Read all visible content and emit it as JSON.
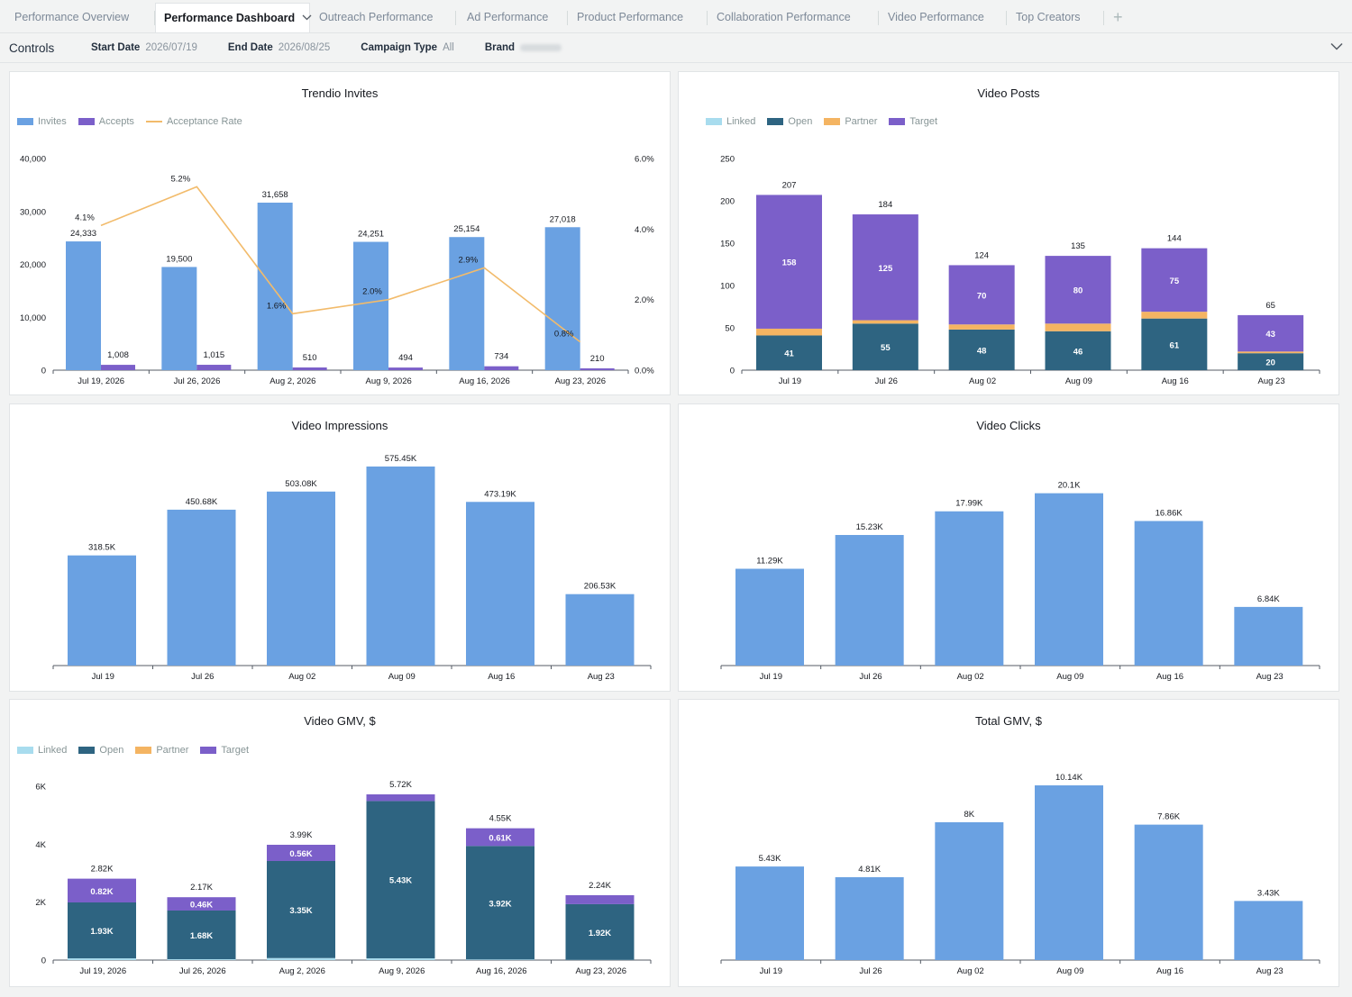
{
  "tabs": [
    {
      "label": "Performance Overview",
      "active": false
    },
    {
      "label": "Performance Dashboard",
      "active": true
    },
    {
      "label": "Outreach Performance",
      "active": false
    },
    {
      "label": "Ad Performance",
      "active": false
    },
    {
      "label": "Product Performance",
      "active": false
    },
    {
      "label": "Collaboration Performance",
      "active": false
    },
    {
      "label": "Video Performance",
      "active": false
    },
    {
      "label": "Top Creators",
      "active": false
    }
  ],
  "add_tab_label": "+",
  "controls": {
    "title": "Controls",
    "start_date_label": "Start Date",
    "start_date_value": "2026/07/19",
    "end_date_label": "End Date",
    "end_date_value": "2026/08/25",
    "campaign_type_label": "Campaign Type",
    "campaign_type_value": "All",
    "brand_label": "Brand"
  },
  "colors": {
    "invites": "#6aa1e2",
    "accepts": "#7b5fc9",
    "rate_line": "#f2bb6b",
    "linked": "#a8dcee",
    "open": "#2e6481",
    "partner": "#f4b462",
    "target": "#7b5fc9",
    "bar": "#6aa1e2"
  },
  "chart_data": [
    {
      "id": "trendio-invites",
      "type": "bar",
      "title": "Trendio Invites",
      "categories": [
        "Jul 19, 2026",
        "Jul 26, 2026",
        "Aug 2, 2026",
        "Aug 9, 2026",
        "Aug 16, 2026",
        "Aug 23, 2026"
      ],
      "series": [
        {
          "name": "Invites",
          "values": [
            24333,
            19500,
            31658,
            24251,
            25154,
            27018
          ],
          "labels": [
            "24,333",
            "19,500",
            "31,658",
            "24,251",
            "25,154",
            "27,018"
          ]
        },
        {
          "name": "Accepts",
          "values": [
            1008,
            1015,
            510,
            494,
            734,
            210
          ],
          "labels": [
            "1,008",
            "1,015",
            "510",
            "494",
            "734",
            "210"
          ]
        }
      ],
      "line_series": {
        "name": "Acceptance Rate",
        "values": [
          4.1,
          5.2,
          1.6,
          2.0,
          2.9,
          0.8
        ],
        "labels": [
          "4.1%",
          "5.2%",
          "1.6%",
          "2.0%",
          "2.9%",
          "0.8%"
        ]
      },
      "ylim": [
        0,
        40000
      ],
      "yticks": [
        "0",
        "10,000",
        "20,000",
        "30,000",
        "40,000"
      ],
      "y2lim": [
        0,
        6
      ],
      "y2ticks": [
        "0.0%",
        "2.0%",
        "4.0%",
        "6.0%"
      ],
      "legend": "top-left"
    },
    {
      "id": "video-posts",
      "type": "bar",
      "stacked": true,
      "title": "Video Posts",
      "categories": [
        "Jul 19",
        "Jul 26",
        "Aug 02",
        "Aug 09",
        "Aug 16",
        "Aug 23"
      ],
      "series": [
        {
          "name": "Linked",
          "values": [
            0,
            0,
            0,
            0,
            0,
            0
          ],
          "labels": []
        },
        {
          "name": "Open",
          "values": [
            41,
            55,
            48,
            46,
            61,
            20
          ],
          "labels": [
            "41",
            "55",
            "48",
            "46",
            "61",
            "20"
          ]
        },
        {
          "name": "Partner",
          "values": [
            8,
            4,
            6,
            9,
            8,
            2
          ],
          "labels": []
        },
        {
          "name": "Target",
          "values": [
            158,
            125,
            70,
            80,
            75,
            43
          ],
          "labels": [
            "158",
            "125",
            "70",
            "80",
            "75",
            "43"
          ]
        }
      ],
      "totals": [
        "207",
        "184",
        "124",
        "135",
        "144",
        "65"
      ],
      "ylim": [
        0,
        250
      ],
      "yticks": [
        "0",
        "50",
        "100",
        "150",
        "200",
        "250"
      ],
      "legend": "top-left"
    },
    {
      "id": "video-impressions",
      "type": "bar",
      "title": "Video Impressions",
      "categories": [
        "Jul 19",
        "Jul 26",
        "Aug 02",
        "Aug 09",
        "Aug 16",
        "Aug 23"
      ],
      "values": [
        318500,
        450680,
        503080,
        575450,
        473190,
        206530
      ],
      "labels": [
        "318.5K",
        "450.68K",
        "503.08K",
        "575.45K",
        "473.19K",
        "206.53K"
      ],
      "ylim": [
        0,
        575450
      ]
    },
    {
      "id": "video-clicks",
      "type": "bar",
      "title": "Video Clicks",
      "categories": [
        "Jul 19",
        "Jul 26",
        "Aug 02",
        "Aug 09",
        "Aug 16",
        "Aug 23"
      ],
      "values": [
        11290,
        15230,
        17990,
        20100,
        16860,
        6840
      ],
      "labels": [
        "11.29K",
        "15.23K",
        "17.99K",
        "20.1K",
        "16.86K",
        "6.84K"
      ],
      "ylim": [
        0,
        25000
      ]
    },
    {
      "id": "video-gmv",
      "type": "bar",
      "stacked": true,
      "title": "Video GMV, $",
      "categories": [
        "Jul 19, 2026",
        "Jul 26, 2026",
        "Aug 2, 2026",
        "Aug 9, 2026",
        "Aug 16, 2026",
        "Aug 23, 2026"
      ],
      "series": [
        {
          "name": "Linked",
          "values": [
            60,
            30,
            70,
            60,
            20,
            10
          ],
          "labels": []
        },
        {
          "name": "Open",
          "values": [
            1930,
            1680,
            3350,
            5430,
            3920,
            1920
          ],
          "labels": [
            "1.93K",
            "1.68K",
            "3.35K",
            "5.43K",
            "3.92K",
            "1.92K"
          ]
        },
        {
          "name": "Partner",
          "values": [
            0,
            0,
            0,
            0,
            0,
            0
          ],
          "labels": []
        },
        {
          "name": "Target",
          "values": [
            820,
            460,
            560,
            230,
            610,
            310
          ],
          "labels": [
            "0.82K",
            "0.46K",
            "0.56K",
            "",
            "0.61K",
            ""
          ]
        }
      ],
      "totals": [
        "2.82K",
        "2.17K",
        "3.99K",
        "5.72K",
        "4.55K",
        "2.24K"
      ],
      "ylim": [
        0,
        6000
      ],
      "yticks": [
        "0",
        "2K",
        "4K",
        "6K"
      ],
      "legend": "top-left"
    },
    {
      "id": "total-gmv",
      "type": "bar",
      "title": "Total GMV, $",
      "categories": [
        "Jul 19",
        "Jul 26",
        "Aug 02",
        "Aug 09",
        "Aug 16",
        "Aug 23"
      ],
      "values": [
        5430,
        4810,
        8000,
        10140,
        7860,
        3430
      ],
      "labels": [
        "5.43K",
        "4.81K",
        "8K",
        "10.14K",
        "7.86K",
        "3.43K"
      ],
      "ylim": [
        0,
        10140
      ]
    }
  ]
}
